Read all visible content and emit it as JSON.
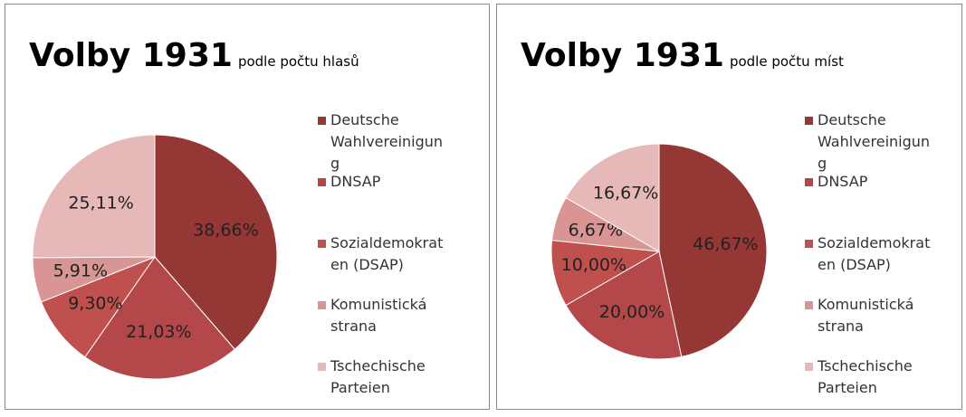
{
  "chart_data": [
    {
      "type": "pie",
      "title": "Volby 1931",
      "subtitle": "podle počtu hlasů",
      "categories": [
        "Deutsche Wahlvereinigung",
        "DNSAP",
        "Sozialdemokraten (DSAP)",
        "Komunistická strana",
        "Tschechische Parteien"
      ],
      "values": [
        38.66,
        21.03,
        9.3,
        5.91,
        25.11
      ],
      "value_labels": [
        "38,66%",
        "21,03%",
        "9,30%",
        "5,91%",
        "25,11%"
      ],
      "colors": [
        "#953735",
        "#b3474a",
        "#c0504d",
        "#d99594",
        "#e6b9b8"
      ],
      "legend": "right"
    },
    {
      "type": "pie",
      "title": "Volby 1931",
      "subtitle": "podle počtu míst",
      "categories": [
        "Deutsche Wahlvereinigung",
        "DNSAP",
        "Sozialdemokraten (DSAP)",
        "Komunistická strana",
        "Tschechische Parteien"
      ],
      "values": [
        46.67,
        20.0,
        10.0,
        6.67,
        16.67
      ],
      "value_labels": [
        "46,67%",
        "20,00%",
        "10,00%",
        "6,67%",
        "16,67%"
      ],
      "colors": [
        "#953735",
        "#b3474a",
        "#c0504d",
        "#d99594",
        "#e6b9b8"
      ],
      "legend": "right"
    }
  ]
}
